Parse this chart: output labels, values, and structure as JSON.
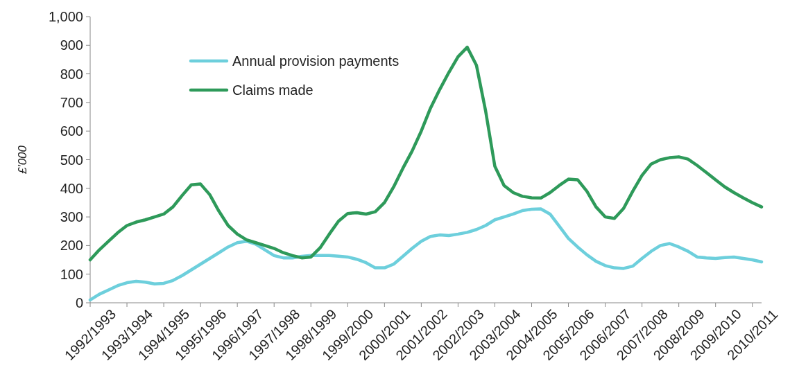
{
  "chart_data": {
    "type": "line",
    "ylabel": "£'000",
    "categories": [
      "1992/1993",
      null,
      null,
      null,
      "1993/1994",
      null,
      null,
      null,
      "1994/1995",
      null,
      null,
      null,
      "1995/1996",
      null,
      null,
      null,
      "1996/1997",
      null,
      null,
      null,
      "1997/1998",
      null,
      null,
      null,
      "1998/1999",
      null,
      null,
      null,
      "1999/2000",
      null,
      null,
      null,
      "2000/2001",
      null,
      null,
      null,
      "2001/2002",
      null,
      null,
      null,
      "2002/2003",
      null,
      null,
      null,
      "2003/2004",
      null,
      null,
      null,
      "2004/2005",
      null,
      null,
      null,
      "2005/2006",
      null,
      null,
      null,
      "2006/2007",
      null,
      null,
      null,
      "2007/2008",
      null,
      null,
      null,
      "2008/2009",
      null,
      null,
      null,
      "2009/2010",
      null,
      null,
      null,
      "2010/2011",
      null
    ],
    "ylim": [
      0,
      1000
    ],
    "yticks": [
      0,
      100,
      200,
      300,
      400,
      500,
      600,
      700,
      800,
      900,
      {
        "value": 1000,
        "label": "1,000"
      }
    ],
    "legend": "top left",
    "line_style": "solid",
    "series": [
      {
        "name": "Annual provision payments",
        "color": "#6dcfdc",
        "values": [
          10,
          30,
          45,
          60,
          70,
          75,
          72,
          66,
          68,
          78,
          95,
          115,
          135,
          155,
          175,
          195,
          210,
          215,
          205,
          185,
          165,
          157,
          157,
          162,
          165,
          165,
          165,
          163,
          160,
          152,
          140,
          122,
          122,
          135,
          162,
          190,
          215,
          232,
          237,
          235,
          240,
          246,
          256,
          270,
          290,
          300,
          310,
          322,
          327,
          328,
          310,
          268,
          225,
          195,
          168,
          145,
          130,
          122,
          120,
          128,
          155,
          180,
          200,
          207,
          195,
          180,
          160,
          157,
          155,
          158,
          160,
          155,
          150,
          143
        ]
      },
      {
        "name": "Claims made",
        "color": "#2e9a5a",
        "values": [
          150,
          185,
          215,
          245,
          270,
          282,
          290,
          300,
          310,
          335,
          375,
          412,
          415,
          378,
          320,
          270,
          240,
          220,
          210,
          200,
          190,
          175,
          165,
          157,
          160,
          192,
          240,
          285,
          312,
          315,
          310,
          318,
          350,
          405,
          470,
          530,
          600,
          680,
          745,
          805,
          860,
          893,
          830,
          670,
          477,
          410,
          385,
          372,
          367,
          366,
          385,
          410,
          432,
          430,
          390,
          335,
          300,
          295,
          330,
          390,
          445,
          485,
          500,
          507,
          510,
          502,
          480,
          455,
          430,
          405,
          385,
          367,
          350,
          335
        ]
      }
    ]
  }
}
